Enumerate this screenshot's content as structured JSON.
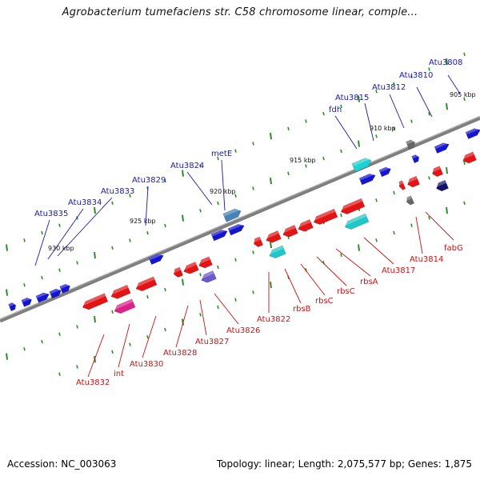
{
  "title": "Agrobacterium tumefaciens str. C58 chromosome linear, comple...",
  "footer": {
    "accession": "Accession: NC_003063",
    "summary": "Topology: linear; Length: 2,075,577 bp; Genes: 1,875"
  },
  "colors": {
    "backbone": "#7f7f7f",
    "forward": "#1414d2",
    "reverse": "#e41414",
    "ticks": "#2e8b2e",
    "label_forward": "#1a1aa6",
    "label_reverse": "#c81414"
  },
  "scale_labels": [
    {
      "text": "905 kbp",
      "kbp": 905
    },
    {
      "text": "910 kbp",
      "kbp": 910
    },
    {
      "text": "915 kbp",
      "kbp": 915
    },
    {
      "text": "920 kbp",
      "kbp": 920
    },
    {
      "text": "925 kbp",
      "kbp": 925
    },
    {
      "text": "930 kbp",
      "kbp": 930
    }
  ],
  "forward_labels": [
    {
      "text": "Atu3808"
    },
    {
      "text": "Atu3810"
    },
    {
      "text": "Atu3812"
    },
    {
      "text": "Atu3815"
    },
    {
      "text": "fdh"
    },
    {
      "text": "metE"
    },
    {
      "text": "Atu3824"
    },
    {
      "text": "Atu3829"
    },
    {
      "text": "Atu3833"
    },
    {
      "text": "Atu3834"
    },
    {
      "text": "Atu3835"
    }
  ],
  "reverse_labels": [
    {
      "text": "fabG"
    },
    {
      "text": "Atu3814"
    },
    {
      "text": "Atu3817"
    },
    {
      "text": "rbsA"
    },
    {
      "text": "rbsC"
    },
    {
      "text": "rbsC"
    },
    {
      "text": "rbsB"
    },
    {
      "text": "Atu3822"
    },
    {
      "text": "Atu3826"
    },
    {
      "text": "Atu3827"
    },
    {
      "text": "Atu3828"
    },
    {
      "text": "Atu3830"
    },
    {
      "text": "int"
    },
    {
      "text": "Atu3832"
    }
  ]
}
